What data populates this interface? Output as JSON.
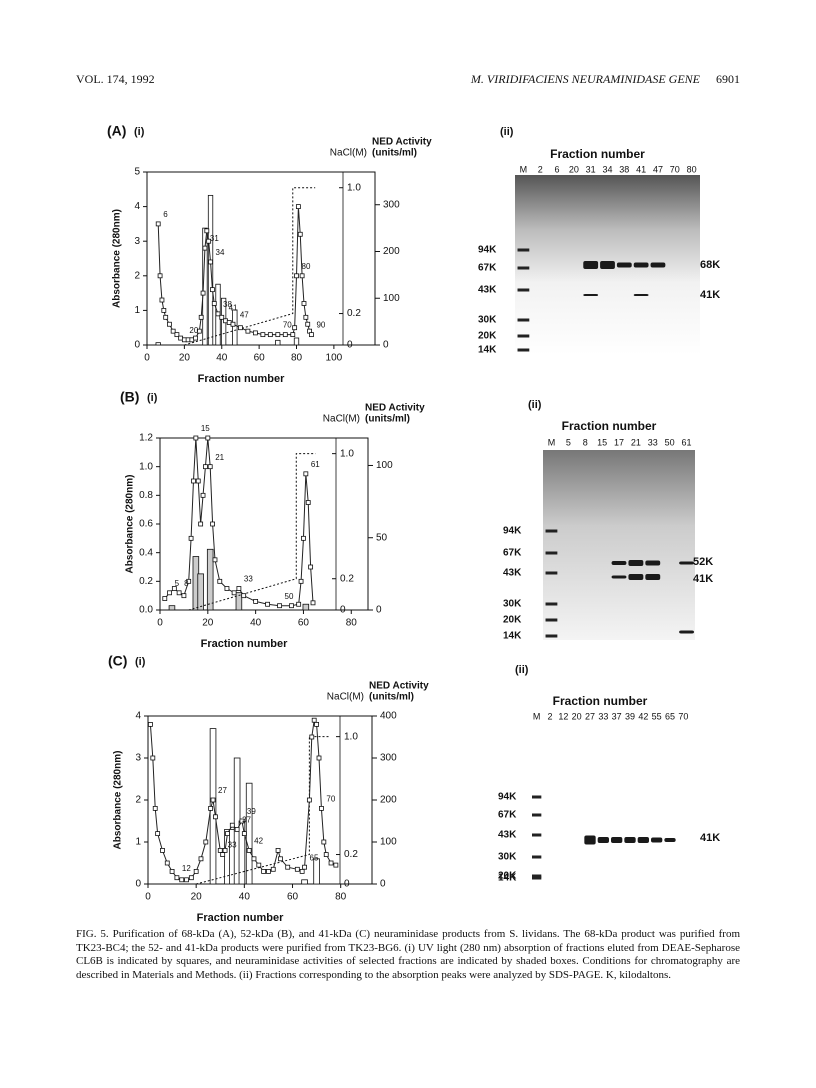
{
  "header": {
    "left": "VOL. 174, 1992",
    "title": "M. VIRIDIFACIENS NEURAMINIDASE GENE",
    "page": "6901"
  },
  "chart_data": [
    {
      "type": "line",
      "panel": "(A)",
      "sub": "(i)",
      "ylabel": "Absorbance (280nm)",
      "y2label": [
        "NED Activity",
        "(units/ml)"
      ],
      "y3label": "NaCl(M)",
      "xlabel": "Fraction number",
      "xlim": [
        0,
        122
      ],
      "xticks": [
        0,
        20,
        40,
        60,
        80,
        100
      ],
      "ylim": [
        0,
        5
      ],
      "yticks": [
        0,
        1,
        2,
        3,
        4,
        5
      ],
      "y2lim": [
        0,
        370
      ],
      "y2ticks": [
        0,
        100,
        200,
        300
      ],
      "y3lim": [
        0,
        1.1
      ],
      "y3ticks": [
        0,
        0.2,
        {
          "value": 1.0,
          "label": "1.0"
        }
      ],
      "absorbance": {
        "color": "#222",
        "x": [
          6,
          7,
          8,
          9,
          10,
          12,
          14,
          16,
          18,
          20,
          22,
          24,
          26,
          28,
          29,
          30,
          31,
          32,
          33,
          34,
          35,
          36,
          38,
          40,
          42,
          44,
          46,
          50,
          54,
          58,
          62,
          66,
          70,
          74,
          78,
          79,
          80,
          81,
          82,
          83,
          84,
          85,
          86,
          87,
          88
        ],
        "values": [
          3.5,
          2.0,
          1.3,
          1.0,
          0.8,
          0.6,
          0.4,
          0.3,
          0.2,
          0.15,
          0.15,
          0.15,
          0.2,
          0.4,
          0.8,
          1.5,
          2.8,
          3.3,
          3.0,
          2.4,
          1.6,
          1.2,
          0.9,
          0.8,
          0.7,
          0.65,
          0.6,
          0.5,
          0.4,
          0.35,
          0.3,
          0.3,
          0.3,
          0.3,
          0.3,
          0.5,
          2.0,
          4.0,
          3.2,
          2.0,
          1.2,
          0.8,
          0.6,
          0.4,
          0.3
        ]
      },
      "activity": {
        "axis": "y2",
        "color": "#fff",
        "x": [
          6,
          31,
          34,
          38,
          41,
          47,
          70,
          80
        ],
        "values": [
          5,
          250,
          320,
          130,
          100,
          75,
          10,
          15
        ]
      },
      "nacl": {
        "axis": "y3",
        "x": [
          20,
          78,
          78,
          90
        ],
        "values": [
          0,
          0.2,
          1.0,
          1.0
        ]
      },
      "annotations": [
        {
          "text": "6",
          "x": 6
        },
        {
          "text": "20",
          "x": 20
        },
        {
          "text": "31",
          "x": 31
        },
        {
          "text": "34",
          "x": 34
        },
        {
          "text": "38",
          "x": 38
        },
        {
          "text": "41",
          "x": 41
        },
        {
          "text": "47",
          "x": 47
        },
        {
          "text": "70",
          "x": 70
        },
        {
          "text": "80",
          "x": 80
        },
        {
          "text": "90",
          "x": 88
        }
      ]
    },
    {
      "type": "line",
      "panel": "(B)",
      "sub": "(i)",
      "ylabel": "Absorbance (280nm)",
      "y2label": [
        "NED Activity",
        "(units/ml)"
      ],
      "y3label": "NaCl(M)",
      "xlabel": "Fraction number",
      "xlim": [
        0,
        87
      ],
      "xticks": [
        0,
        20,
        40,
        60,
        80
      ],
      "ylim": [
        0,
        1.2
      ],
      "yticks": [
        {
          "value": 0,
          "label": "0.0"
        },
        0.2,
        0.4,
        0.6,
        0.8,
        {
          "value": 1.0,
          "label": "1.0"
        },
        1.2
      ],
      "y2lim": [
        0,
        119
      ],
      "y2ticks": [
        0,
        50,
        100
      ],
      "y3lim": [
        0,
        1.1
      ],
      "y3ticks": [
        0,
        0.2,
        {
          "value": 1.0,
          "label": "1.0"
        }
      ],
      "absorbance": {
        "color": "#222",
        "x": [
          2,
          4,
          6,
          8,
          10,
          12,
          13,
          14,
          15,
          16,
          17,
          18,
          19,
          20,
          21,
          22,
          23,
          25,
          28,
          31,
          33,
          35,
          40,
          45,
          50,
          55,
          58,
          59,
          60,
          61,
          62,
          63,
          64
        ],
        "values": [
          0.08,
          0.12,
          0.15,
          0.12,
          0.1,
          0.2,
          0.5,
          0.9,
          1.2,
          0.9,
          0.6,
          0.8,
          1.0,
          1.2,
          1.0,
          0.6,
          0.35,
          0.2,
          0.15,
          0.12,
          0.15,
          0.1,
          0.06,
          0.04,
          0.03,
          0.03,
          0.04,
          0.2,
          0.5,
          0.95,
          0.75,
          0.3,
          0.05
        ]
      },
      "activity": {
        "axis": "y2",
        "color": "#ccc",
        "x": [
          5,
          15,
          17,
          21,
          33,
          61
        ],
        "values": [
          3,
          37,
          25,
          42,
          12,
          4
        ]
      },
      "nacl": {
        "axis": "y3",
        "x": [
          12,
          57,
          57,
          65
        ],
        "values": [
          0,
          0.2,
          1.0,
          1.0
        ]
      },
      "annotations": [
        {
          "text": "5",
          "x": 4
        },
        {
          "text": "8",
          "x": 8
        },
        {
          "text": "15",
          "x": 15
        },
        {
          "text": "21",
          "x": 21
        },
        {
          "text": "33",
          "x": 33
        },
        {
          "text": "50",
          "x": 50
        },
        {
          "text": "61",
          "x": 61
        }
      ]
    },
    {
      "type": "line",
      "panel": "(C)",
      "sub": "(i)",
      "ylabel": "Absorbance (280nm)",
      "y2label": [
        "NED Activity",
        "(units/ml)"
      ],
      "y3label": "NaCl(M)",
      "xlabel": "Fraction number",
      "xlim": [
        0,
        93
      ],
      "xticks": [
        0,
        20,
        40,
        60,
        80
      ],
      "ylim": [
        0,
        4
      ],
      "yticks": [
        0,
        1,
        2,
        3,
        4
      ],
      "y2lim": [
        0,
        400
      ],
      "y2ticks": [
        0,
        100,
        200,
        300,
        400
      ],
      "y3lim": [
        0,
        1.14
      ],
      "y3ticks": [
        0,
        0.2,
        {
          "value": 1.0,
          "label": "1.0"
        }
      ],
      "absorbance": {
        "color": "#222",
        "x": [
          1,
          2,
          3,
          4,
          6,
          8,
          10,
          12,
          14,
          16,
          18,
          20,
          22,
          24,
          26,
          27,
          28,
          30,
          31,
          32,
          33,
          35,
          37,
          39,
          40,
          42,
          44,
          46,
          48,
          50,
          52,
          54,
          55,
          58,
          62,
          64,
          65,
          67,
          68,
          69,
          70,
          71,
          72,
          73,
          74,
          76,
          78
        ],
        "values": [
          3.8,
          3.0,
          1.8,
          1.2,
          0.8,
          0.5,
          0.3,
          0.15,
          0.1,
          0.1,
          0.15,
          0.3,
          0.6,
          1.0,
          1.8,
          2.0,
          1.6,
          0.8,
          0.7,
          0.8,
          1.2,
          1.4,
          1.3,
          1.5,
          1.2,
          0.8,
          0.6,
          0.45,
          0.3,
          0.3,
          0.35,
          0.8,
          0.6,
          0.4,
          0.35,
          0.3,
          0.4,
          2.0,
          3.5,
          3.9,
          3.8,
          3.0,
          1.8,
          1.0,
          0.7,
          0.5,
          0.45
        ]
      },
      "activity": {
        "axis": "y2",
        "color": "#fff",
        "x": [
          27,
          33,
          35,
          37,
          39,
          42,
          65,
          70
        ],
        "values": [
          370,
          130,
          130,
          300,
          150,
          240,
          10,
          60
        ]
      },
      "nacl": {
        "axis": "y3",
        "x": [
          20,
          67,
          67,
          75
        ],
        "values": [
          0,
          0.2,
          1.0,
          1.0
        ]
      },
      "annotations": [
        {
          "text": "12",
          "x": 12
        },
        {
          "text": "27",
          "x": 27
        },
        {
          "text": "33",
          "x": 31
        },
        {
          "text": "37",
          "x": 37
        },
        {
          "text": "39",
          "x": 39
        },
        {
          "text": "42",
          "x": 42
        },
        {
          "text": "65",
          "x": 65
        },
        {
          "text": "70",
          "x": 72
        }
      ]
    }
  ],
  "gels": [
    {
      "sub": "(ii)",
      "title": "Fraction number",
      "lanes": [
        "M",
        "2",
        "6",
        "20",
        "31",
        "34",
        "38",
        "41",
        "47",
        "70",
        "80"
      ],
      "markers": [
        "94K",
        "67K",
        "43K",
        "30K",
        "20K",
        "14K"
      ],
      "right": [
        "68K",
        "41K"
      ]
    },
    {
      "sub": "(ii)",
      "title": "Fraction number",
      "lanes": [
        "M",
        "5",
        "8",
        "15",
        "17",
        "21",
        "33",
        "50",
        "61"
      ],
      "markers": [
        "94K",
        "67K",
        "43K",
        "30K",
        "20K",
        "14K"
      ],
      "right": [
        "52K",
        "41K"
      ]
    },
    {
      "sub": "(ii)",
      "title": "Fraction number",
      "lanes": [
        "M",
        "2",
        "12",
        "20",
        "27",
        "33",
        "37",
        "39",
        "42",
        "55",
        "65",
        "70"
      ],
      "markers": [
        "94K",
        "67K",
        "43K",
        "30K",
        "20K",
        "14K"
      ],
      "right": [
        "41K"
      ]
    }
  ],
  "caption": {
    "label": "FIG. 5.",
    "text": "Purification of 68-kDa (A), 52-kDa (B), and 41-kDa (C) neuraminidase products from S. lividans. The 68-kDa product was purified from TK23-BC4; the 52- and 41-kDa products were purified from TK23-BG6. (i) UV light (280 nm) absorption of fractions eluted from DEAE-Sepharose CL6B is indicated by squares, and neuraminidase activities of selected fractions are indicated by shaded boxes. Conditions for chromatography are described in Materials and Methods. (ii) Fractions corresponding to the absorption peaks were analyzed by SDS-PAGE. K, kilodaltons."
  }
}
